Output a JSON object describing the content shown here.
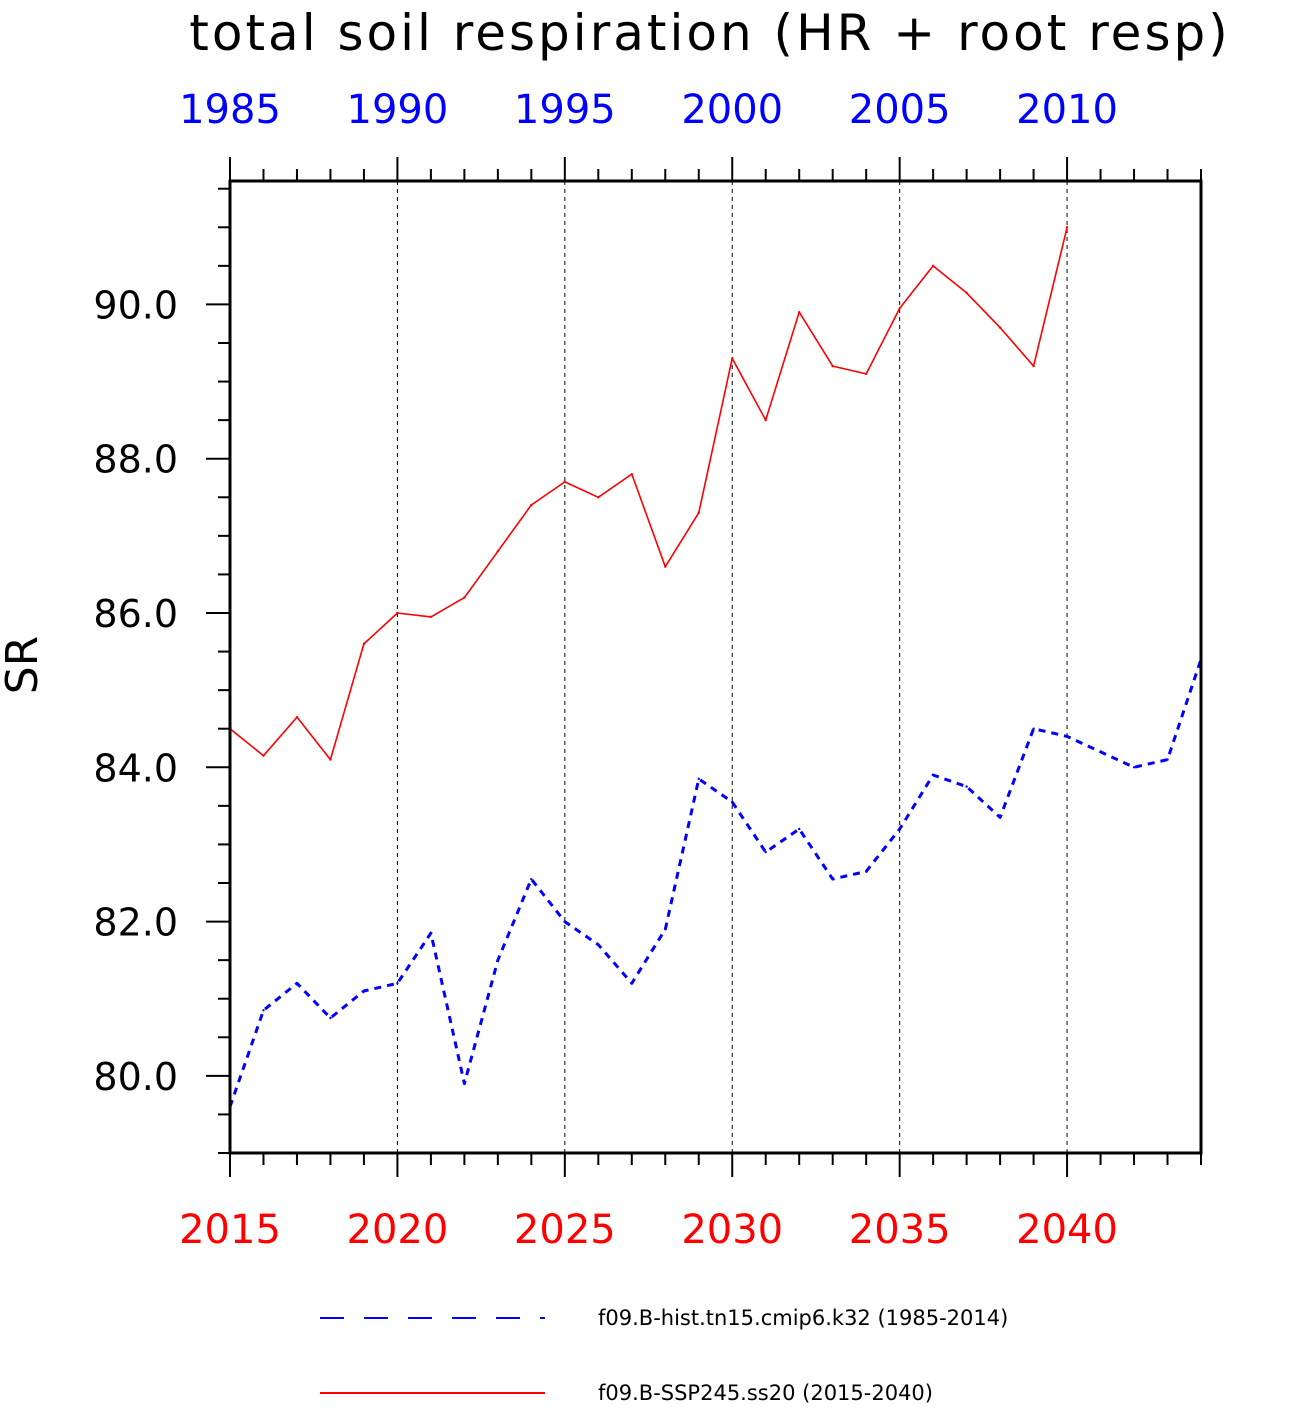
{
  "chart_data": {
    "type": "line",
    "title": "total soil respiration (HR + root resp)",
    "ylabel": "SR",
    "ylim": [
      79.0,
      91.6
    ],
    "yticks": [
      80.0,
      82.0,
      84.0,
      86.0,
      88.0,
      90.0
    ],
    "ytick_labels": [
      "80.0",
      "82.0",
      "84.0",
      "86.0",
      "88.0",
      "90.0"
    ],
    "x_bottom": {
      "range": [
        2015,
        2044
      ],
      "ticks": [
        2015,
        2020,
        2025,
        2030,
        2035,
        2040
      ],
      "labels": [
        "2015",
        "2020",
        "2025",
        "2030",
        "2035",
        "2040"
      ],
      "color": "#ff0000"
    },
    "x_top": {
      "range": [
        1985,
        2014
      ],
      "ticks": [
        1985,
        1990,
        1995,
        2000,
        2005,
        2010
      ],
      "labels": [
        "1985",
        "1990",
        "1995",
        "2000",
        "2005",
        "2010"
      ],
      "color": "#0000ff"
    },
    "grid": "vertical dashed at major ticks",
    "series": [
      {
        "name": "f09.B-hist.tn15.cmip6.k32 (1985-2014)",
        "color": "#0000ff",
        "style": "dashed",
        "x": [
          1985,
          1986,
          1987,
          1988,
          1989,
          1990,
          1991,
          1992,
          1993,
          1994,
          1995,
          1996,
          1997,
          1998,
          1999,
          2000,
          2001,
          2002,
          2003,
          2004,
          2005,
          2006,
          2007,
          2008,
          2009,
          2010,
          2011,
          2012,
          2013,
          2014
        ],
        "values": [
          79.6,
          80.85,
          81.2,
          80.75,
          81.1,
          81.2,
          81.85,
          79.9,
          81.5,
          82.55,
          82.0,
          81.7,
          81.2,
          81.9,
          83.85,
          83.55,
          82.9,
          83.2,
          82.55,
          82.65,
          83.2,
          83.9,
          83.75,
          83.35,
          84.5,
          84.4,
          84.2,
          84.0,
          84.1,
          85.4
        ]
      },
      {
        "name": "f09.B-SSP245.ss20 (2015-2040)",
        "color": "#ff0000",
        "style": "solid",
        "x": [
          2015,
          2016,
          2017,
          2018,
          2019,
          2020,
          2021,
          2022,
          2023,
          2024,
          2025,
          2026,
          2027,
          2028,
          2029,
          2030,
          2031,
          2032,
          2033,
          2034,
          2035,
          2036,
          2037,
          2038,
          2039,
          2040
        ],
        "values": [
          84.5,
          84.15,
          84.65,
          84.1,
          85.6,
          86.0,
          85.95,
          86.2,
          86.8,
          87.4,
          87.7,
          87.5,
          87.8,
          86.6,
          87.3,
          89.3,
          88.5,
          89.9,
          89.2,
          89.1,
          89.95,
          90.5,
          90.15,
          89.7,
          89.2,
          91.0
        ]
      }
    ],
    "legend": {
      "placement": "bottom"
    }
  }
}
